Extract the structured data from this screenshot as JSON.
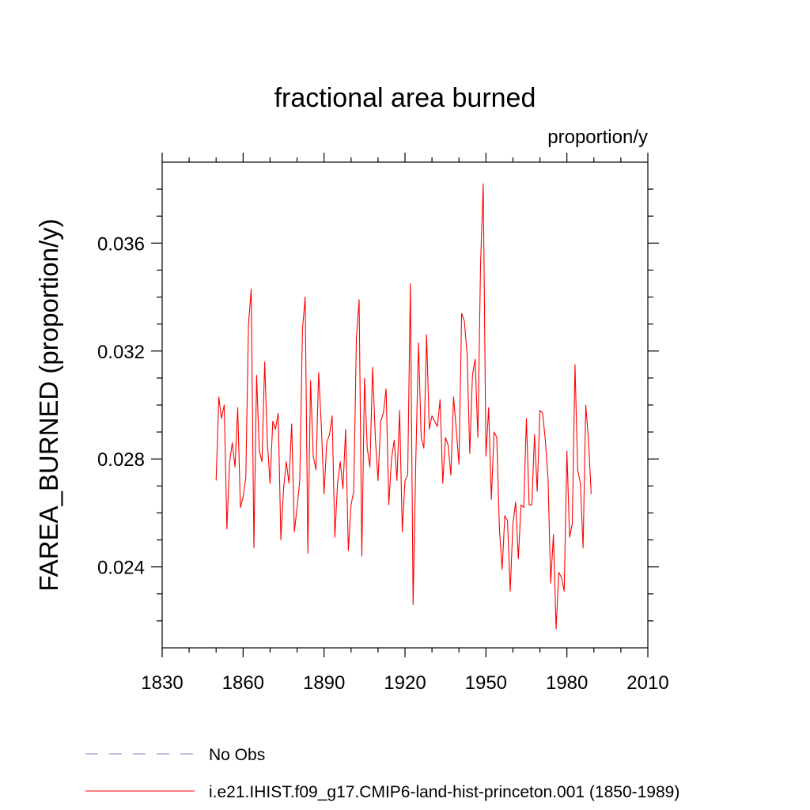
{
  "chart_data": {
    "type": "line",
    "title": "fractional area burned",
    "units_label": "proportion/y",
    "ylabel": "FAREA_BURNED  (proportion/y)",
    "xlabel": "",
    "xlim": [
      1830,
      2010
    ],
    "ylim": [
      0.021,
      0.039
    ],
    "x_ticks": [
      1830,
      1860,
      1890,
      1920,
      1950,
      1980,
      2010
    ],
    "y_ticks": [
      0.024,
      0.028,
      0.032,
      0.036
    ],
    "x_tick_labels": [
      "1830",
      "1860",
      "1890",
      "1920",
      "1950",
      "1980",
      "2010"
    ],
    "y_tick_labels": [
      "0.024",
      "0.028",
      "0.032",
      "0.036"
    ],
    "grid": false,
    "legend_position": "bottom",
    "series": [
      {
        "name": "No Obs",
        "color": "#7f7fbf",
        "style": "dashed",
        "x": [],
        "y": []
      },
      {
        "name": "i.e21.IHIST.f09_g17.CMIP6-land-hist-princeton.001 (1850-1989)",
        "color": "#ff0000",
        "style": "solid",
        "x": [
          1850,
          1851,
          1852,
          1853,
          1854,
          1855,
          1856,
          1857,
          1858,
          1859,
          1860,
          1861,
          1862,
          1863,
          1864,
          1865,
          1866,
          1867,
          1868,
          1869,
          1870,
          1871,
          1872,
          1873,
          1874,
          1875,
          1876,
          1877,
          1878,
          1879,
          1880,
          1881,
          1882,
          1883,
          1884,
          1885,
          1886,
          1887,
          1888,
          1889,
          1890,
          1891,
          1892,
          1893,
          1894,
          1895,
          1896,
          1897,
          1898,
          1899,
          1900,
          1901,
          1902,
          1903,
          1904,
          1905,
          1906,
          1907,
          1908,
          1909,
          1910,
          1911,
          1912,
          1913,
          1914,
          1915,
          1916,
          1917,
          1918,
          1919,
          1920,
          1921,
          1922,
          1923,
          1924,
          1925,
          1926,
          1927,
          1928,
          1929,
          1930,
          1931,
          1932,
          1933,
          1934,
          1935,
          1936,
          1937,
          1938,
          1939,
          1940,
          1941,
          1942,
          1943,
          1944,
          1945,
          1946,
          1947,
          1948,
          1949,
          1950,
          1951,
          1952,
          1953,
          1954,
          1955,
          1956,
          1957,
          1958,
          1959,
          1960,
          1961,
          1962,
          1963,
          1964,
          1965,
          1966,
          1967,
          1968,
          1969,
          1970,
          1971,
          1972,
          1973,
          1974,
          1975,
          1976,
          1977,
          1978,
          1979,
          1980,
          1981,
          1982,
          1983,
          1984,
          1985,
          1986,
          1987,
          1988,
          1989
        ],
        "y": [
          0.0272,
          0.0303,
          0.0295,
          0.03,
          0.0254,
          0.0279,
          0.0286,
          0.0277,
          0.0299,
          0.0262,
          0.0266,
          0.0273,
          0.033,
          0.0343,
          0.0247,
          0.0311,
          0.0283,
          0.0279,
          0.0316,
          0.0286,
          0.0271,
          0.0294,
          0.0291,
          0.0297,
          0.025,
          0.0269,
          0.0279,
          0.0271,
          0.0293,
          0.0253,
          0.0262,
          0.0272,
          0.0328,
          0.034,
          0.0245,
          0.0309,
          0.0281,
          0.0276,
          0.0312,
          0.0292,
          0.0267,
          0.0286,
          0.0289,
          0.0296,
          0.0251,
          0.0271,
          0.0279,
          0.0269,
          0.0291,
          0.0246,
          0.0263,
          0.0268,
          0.0325,
          0.0339,
          0.0244,
          0.031,
          0.0284,
          0.0277,
          0.0314,
          0.0288,
          0.0272,
          0.0294,
          0.0297,
          0.0306,
          0.0263,
          0.028,
          0.0287,
          0.0272,
          0.0298,
          0.0253,
          0.0272,
          0.0274,
          0.0345,
          0.0226,
          0.0279,
          0.0323,
          0.0288,
          0.0284,
          0.0326,
          0.0291,
          0.0296,
          0.0294,
          0.0292,
          0.0302,
          0.0271,
          0.0288,
          0.0285,
          0.0274,
          0.0303,
          0.0291,
          0.0278,
          0.0334,
          0.0331,
          0.0319,
          0.0282,
          0.0311,
          0.0317,
          0.0288,
          0.0352,
          0.0382,
          0.0281,
          0.0299,
          0.0265,
          0.029,
          0.0288,
          0.0254,
          0.0239,
          0.0259,
          0.0257,
          0.0231,
          0.0256,
          0.0264,
          0.0243,
          0.0263,
          0.0262,
          0.0295,
          0.0263,
          0.0263,
          0.0289,
          0.0268,
          0.0298,
          0.0297,
          0.0287,
          0.0273,
          0.0234,
          0.0252,
          0.0217,
          0.0238,
          0.0236,
          0.0231,
          0.0283,
          0.0251,
          0.0256,
          0.0315,
          0.0276,
          0.0271,
          0.0247,
          0.03,
          0.0287,
          0.0267
        ]
      }
    ]
  }
}
